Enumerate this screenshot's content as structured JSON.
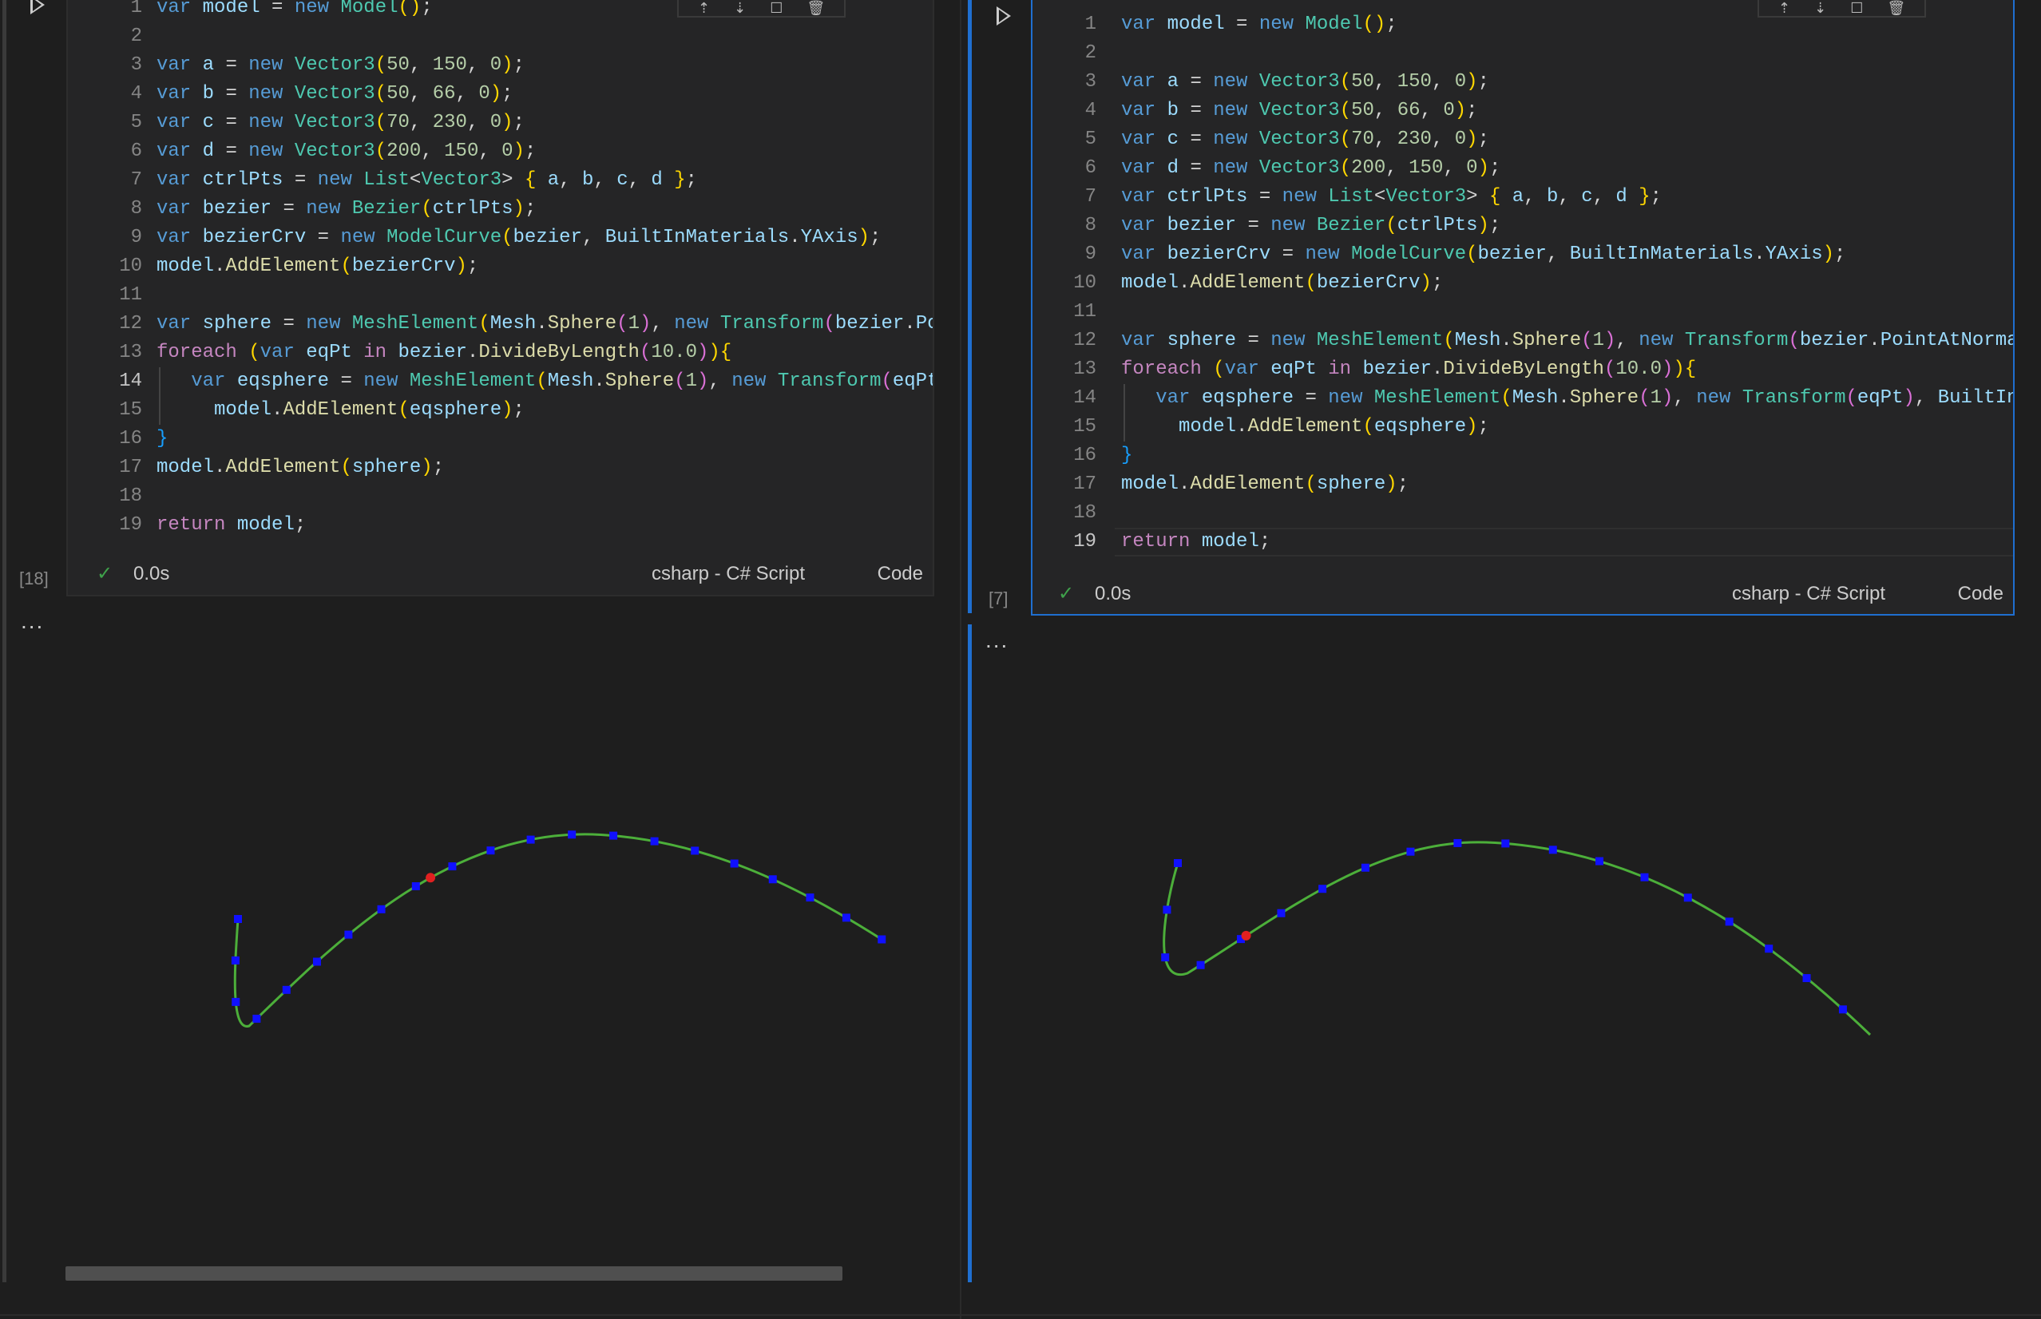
{
  "code_lines_left": [
    "var model = new Model();",
    "",
    "var a = new Vector3(50, 150, 0);",
    "var b = new Vector3(50, 66, 0);",
    "var c = new Vector3(70, 230, 0);",
    "var d = new Vector3(200, 150, 0);",
    "var ctrlPts = new List<Vector3> { a, b, c, d };",
    "var bezier = new Bezier(ctrlPts);",
    "var bezierCrv = new ModelCurve(bezier, BuiltInMaterials.YAxis);",
    "model.AddElement(bezierCrv);",
    "",
    "var sphere = new MeshElement(Mesh.Sphere(1), new Transform(bezier.Po",
    "foreach (var eqPt in bezier.DivideByLength(10.0)){",
    "   var eqsphere = new MeshElement(Mesh.Sphere(1), new Transform(eqPt",
    "     model.AddElement(eqsphere);",
    "}",
    "model.AddElement(sphere);",
    "",
    "return model;"
  ],
  "code_lines_right": [
    "var model = new Model();",
    "",
    "var a = new Vector3(50, 150, 0);",
    "var b = new Vector3(50, 66, 0);",
    "var c = new Vector3(70, 230, 0);",
    "var d = new Vector3(200, 150, 0);",
    "var ctrlPts = new List<Vector3> { a, b, c, d };",
    "var bezier = new Bezier(ctrlPts);",
    "var bezierCrv = new ModelCurve(bezier, BuiltInMaterials.YAxis);",
    "model.AddElement(bezierCrv);",
    "",
    "var sphere = new MeshElement(Mesh.Sphere(1), new Transform(bezier.PointAtNorma",
    "foreach (var eqPt in bezier.DivideByLength(10.0)){",
    "   var eqsphere = new MeshElement(Mesh.Sphere(1), new Transform(eqPt), BuiltIn",
    "     model.AddElement(eqsphere);",
    "}",
    "model.AddElement(sphere);",
    "",
    "return model;"
  ],
  "left_cell": {
    "exec_count": "[18]",
    "status_icon": "check-icon",
    "duration": "0.0s",
    "language": "csharp - C# Script",
    "cell_type": "Code",
    "current_line": 14,
    "output_menu": "..."
  },
  "right_cell": {
    "exec_count": "[7]",
    "status_icon": "check-icon",
    "duration": "0.0s",
    "language": "csharp - C# Script",
    "cell_type": "Code",
    "current_line": 19,
    "output_menu": "..."
  },
  "toolbar_icons": [
    "execute-above-icon",
    "execute-below-icon",
    "split-cell-icon",
    "delete-icon"
  ],
  "colors": {
    "curve": "#4caf3a",
    "points": "#1010ff",
    "start_point": "#e02020",
    "active_border": "#1f6fd0",
    "background": "#1e1e1e"
  }
}
